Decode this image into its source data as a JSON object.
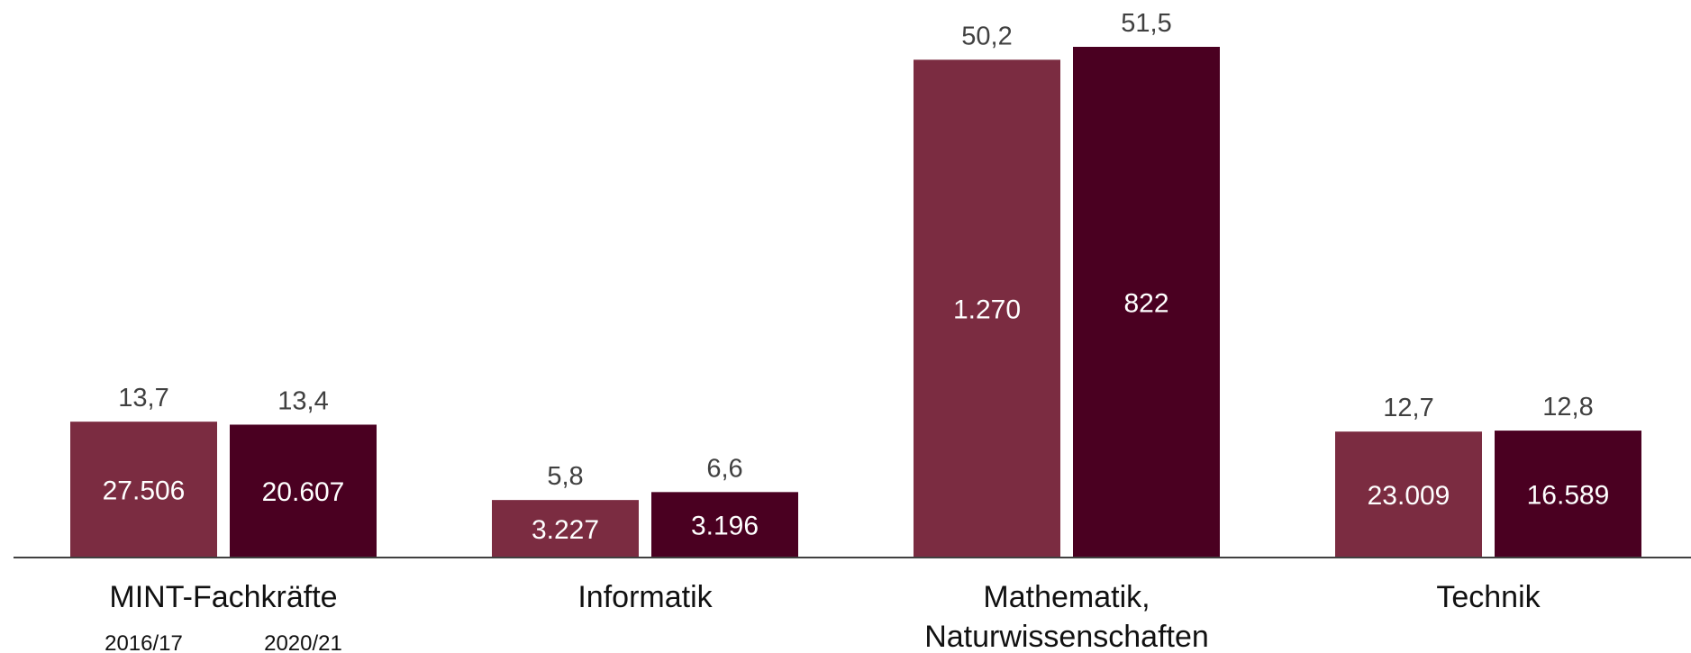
{
  "chart_data": {
    "type": "bar",
    "categories": [
      "MINT-Fachkräfte",
      "Informatik",
      "Mathematik, Naturwissenschaften",
      "Technik"
    ],
    "category_lines": [
      [
        "MINT-Fachkräfte"
      ],
      [
        "Informatik"
      ],
      [
        "Mathematik,",
        "Naturwissenschaften"
      ],
      [
        "Technik"
      ]
    ],
    "series": [
      {
        "name": "2016/17",
        "values": [
          13.7,
          5.8,
          50.2,
          12.7
        ],
        "value_labels": [
          "13,7",
          "5,8",
          "50,2",
          "12,7"
        ],
        "inside_labels": [
          "27.506",
          "3.227",
          "1.270",
          "23.009"
        ],
        "color": "#7b2c41"
      },
      {
        "name": "2020/21",
        "values": [
          13.4,
          6.6,
          51.5,
          12.8
        ],
        "value_labels": [
          "13,4",
          "6,6",
          "51,5",
          "12,8"
        ],
        "inside_labels": [
          "20.607",
          "3.196",
          "822",
          "16.589"
        ],
        "color": "#4a0021"
      }
    ],
    "title": "",
    "xlabel": "",
    "ylabel": "",
    "ylim": [
      0,
      55
    ],
    "grid": false,
    "legend": "below-first-category",
    "value_label_color": "#404040",
    "inside_label_color": "#ffffff",
    "axis_color": "#404040"
  }
}
